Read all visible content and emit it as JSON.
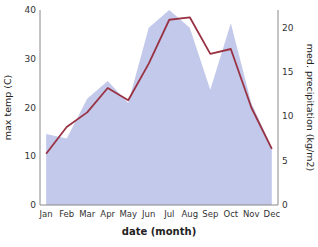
{
  "chart_data": {
    "type": "line",
    "categories": [
      "Jan",
      "Feb",
      "Mar",
      "Apr",
      "May",
      "Jun",
      "Jul",
      "Aug",
      "Sep",
      "Oct",
      "Nov",
      "Dec"
    ],
    "series": [
      {
        "type": "area",
        "axis": "y2",
        "color": "#b8c0e8",
        "values": [
          8.0,
          7.5,
          12.0,
          14.0,
          11.5,
          20.0,
          22.0,
          20.0,
          13.0,
          20.5,
          11.5,
          6.5
        ]
      },
      {
        "type": "line",
        "color": "#993344",
        "values": [
          10.5,
          16.0,
          19.0,
          24.0,
          21.5,
          29.0,
          38.0,
          38.5,
          31.0,
          32.0,
          20.0,
          11.5
        ]
      }
    ],
    "xlabel": "date (month)",
    "ylabel": "max temp (C)",
    "y2label": "med. precipitation (kg/m2)",
    "ylim": [
      0,
      40
    ],
    "yticks": [
      0,
      10,
      20,
      30,
      40
    ],
    "y2lim": [
      0,
      22
    ],
    "y2ticks": [
      0,
      5,
      10,
      15,
      20
    ],
    "grid": false
  }
}
